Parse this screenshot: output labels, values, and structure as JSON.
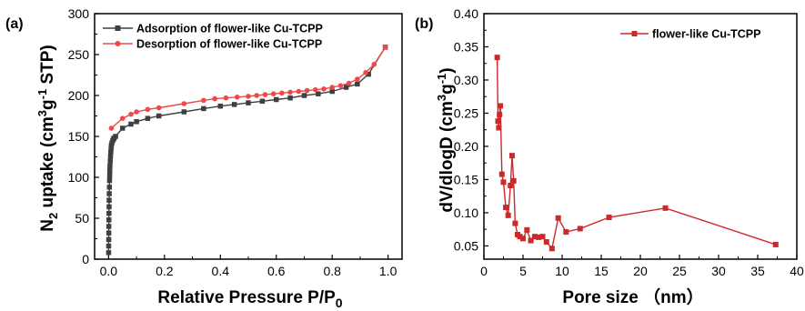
{
  "chart_data": [
    {
      "type": "line",
      "panel_label": "(a)",
      "xlabel": "Relative Pressure P/P",
      "xlabel_sub": "0",
      "ylabel_parts": {
        "a": "N",
        "sub": "2",
        "b": " uptake (cm",
        "sup1": "3",
        "c": "g",
        "sup2": "-1",
        "d": " STP)"
      },
      "xlim": [
        -0.05,
        1.05
      ],
      "ylim": [
        0,
        300
      ],
      "xticks": [
        "0.0",
        "0.2",
        "0.4",
        "0.6",
        "0.8",
        "1.0"
      ],
      "yticks": [
        "0",
        "50",
        "100",
        "150",
        "200",
        "250",
        "300"
      ],
      "legend_position": "top-left",
      "grid": false,
      "series": [
        {
          "name": "Adsorption of flower-like Cu-TCPP",
          "color": "#3f3f3f",
          "marker": "square",
          "x": [
            0.0002,
            0.0004,
            0.0006,
            0.0008,
            0.001,
            0.0012,
            0.0015,
            0.0018,
            0.002,
            0.0025,
            0.003,
            0.0035,
            0.004,
            0.0045,
            0.005,
            0.006,
            0.007,
            0.008,
            0.009,
            0.01,
            0.012,
            0.015,
            0.018,
            0.02,
            0.025,
            0.05,
            0.08,
            0.1,
            0.14,
            0.18,
            0.27,
            0.34,
            0.4,
            0.45,
            0.5,
            0.55,
            0.6,
            0.65,
            0.7,
            0.75,
            0.8,
            0.85,
            0.89,
            0.93,
            0.99
          ],
          "y": [
            8,
            16,
            24,
            32,
            40,
            48,
            56,
            64,
            72,
            80,
            88,
            96,
            102,
            108,
            114,
            120,
            126,
            131,
            135,
            139,
            142,
            145,
            147,
            148,
            150,
            160,
            165,
            168,
            172,
            175,
            180,
            184,
            187,
            189,
            191,
            193,
            195,
            197,
            200,
            202,
            205,
            210,
            214,
            226,
            259
          ]
        },
        {
          "name": "Desorption of flower-like Cu-TCPP",
          "color": "#f04848",
          "marker": "circle",
          "x": [
            0.99,
            0.95,
            0.92,
            0.89,
            0.86,
            0.83,
            0.8,
            0.77,
            0.74,
            0.71,
            0.68,
            0.65,
            0.62,
            0.59,
            0.56,
            0.53,
            0.5,
            0.46,
            0.42,
            0.38,
            0.34,
            0.27,
            0.18,
            0.14,
            0.1,
            0.08,
            0.05,
            0.01
          ],
          "y": [
            259,
            238,
            228,
            220,
            215,
            212,
            210,
            208,
            207,
            206,
            205,
            204,
            203,
            202,
            201,
            200,
            199,
            198,
            197,
            196,
            194,
            190,
            185,
            183,
            180,
            177,
            172,
            160
          ]
        }
      ]
    },
    {
      "type": "line",
      "panel_label": "(b)",
      "xlabel": "Pore size （nm）",
      "ylabel_parts": {
        "a": "dV/dlogD (cm",
        "sup1": "3",
        "c": "g",
        "sup2": "-1",
        "d": ")"
      },
      "xlim": [
        0,
        40
      ],
      "ylim": [
        0.03,
        0.4
      ],
      "xticks": [
        "0",
        "5",
        "10",
        "15",
        "20",
        "25",
        "30",
        "35",
        "40"
      ],
      "yticks": [
        "0.05",
        "0.10",
        "0.15",
        "0.20",
        "0.25",
        "0.30",
        "0.35",
        "0.40"
      ],
      "legend_position": "top-right",
      "grid": false,
      "series": [
        {
          "name": "flower-like Cu-TCPP",
          "color": "#cc2a2a",
          "marker": "square",
          "x": [
            1.7,
            1.8,
            1.9,
            2.0,
            2.1,
            2.3,
            2.5,
            2.8,
            3.1,
            3.4,
            3.6,
            3.8,
            4.0,
            4.3,
            4.6,
            5.0,
            5.5,
            6.0,
            6.5,
            7.0,
            7.5,
            8.0,
            8.7,
            9.5,
            10.5,
            12.3,
            16.0,
            23.2,
            37.3
          ],
          "y": [
            0.334,
            0.238,
            0.228,
            0.248,
            0.261,
            0.158,
            0.146,
            0.108,
            0.096,
            0.141,
            0.186,
            0.148,
            0.084,
            0.067,
            0.064,
            0.061,
            0.074,
            0.058,
            0.064,
            0.063,
            0.064,
            0.056,
            0.046,
            0.092,
            0.071,
            0.076,
            0.093,
            0.107,
            0.052
          ]
        }
      ]
    }
  ]
}
